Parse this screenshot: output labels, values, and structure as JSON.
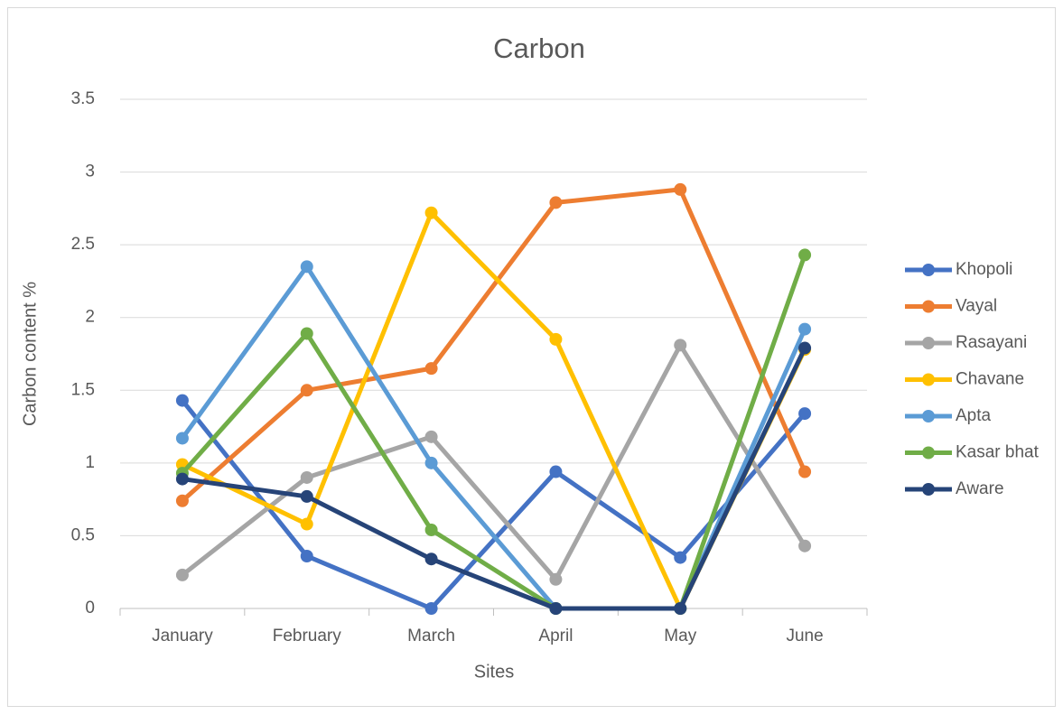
{
  "chart_data": {
    "type": "line",
    "title": "Carbon",
    "x_label": "Sites",
    "y_label": "Carbon content %",
    "categories": [
      "January",
      "February",
      "March",
      "April",
      "May",
      "June"
    ],
    "series": [
      {
        "name": "Khopoli",
        "color": "#4472c4",
        "values": [
          1.43,
          0.36,
          0,
          0.94,
          0.35,
          1.34
        ]
      },
      {
        "name": "Vayal",
        "color": "#ed7d31",
        "values": [
          0.74,
          1.5,
          1.65,
          2.79,
          2.88,
          0.94
        ]
      },
      {
        "name": "Rasayani",
        "color": "#a5a5a5",
        "values": [
          0.23,
          0.9,
          1.18,
          0.2,
          1.81,
          0.43
        ]
      },
      {
        "name": "Chavane",
        "color": "#ffc000",
        "values": [
          0.99,
          0.58,
          2.72,
          1.85,
          0,
          1.78
        ]
      },
      {
        "name": "Apta",
        "color": "#5b9bd5",
        "values": [
          1.17,
          2.35,
          1.0,
          0,
          0,
          1.92
        ]
      },
      {
        "name": "Kasar bhat",
        "color": "#70ad47",
        "values": [
          0.93,
          1.89,
          0.54,
          0,
          0,
          2.43
        ]
      },
      {
        "name": "Aware",
        "color": "#264478",
        "values": [
          0.89,
          0.77,
          0.34,
          0,
          0,
          1.79
        ]
      }
    ],
    "ylim": [
      0,
      3.5
    ],
    "yticks": [
      0,
      0.5,
      1,
      1.5,
      2,
      2.5,
      3,
      3.5
    ],
    "grid": true,
    "legend": "right"
  }
}
